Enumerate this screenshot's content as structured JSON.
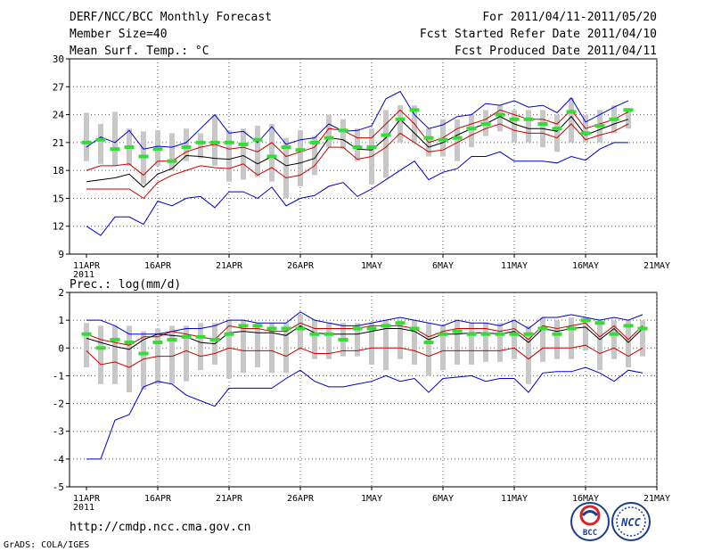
{
  "header": {
    "title": "DERF/NCC/BCC Monthly Forecast",
    "member_size": "Member Size=40",
    "variable_top": "Mean Surf. Temp.: °C",
    "period": "For 2011/04/11-2011/05/20",
    "started_refer": "Fcst Started Refer Date 2011/04/10",
    "produced": "Fcst Produced Date 2011/04/11"
  },
  "footer": {
    "url": "http://cmdp.ncc.cma.gov.cn",
    "credit": "GrADS: COLA/IGES",
    "logo_bcc": "BCC",
    "logo_ncc": "NCC"
  },
  "colors": {
    "max_min_line": "#0000cc",
    "upper_lower_line": "#cc0000",
    "mean_line": "#000000",
    "box": "#c8c8c8",
    "median_dash": "#33dd33",
    "grid": "#555555"
  },
  "chart_data": [
    {
      "type": "line",
      "title": "Mean Surf. Temp.: °C",
      "xlabel": "",
      "ylabel": "°C",
      "ylim": [
        9,
        30
      ],
      "yticks": [
        9,
        12,
        15,
        18,
        21,
        24,
        27,
        30
      ],
      "xticks": [
        {
          "day": 0,
          "label": "11APR",
          "sub": "2011"
        },
        {
          "day": 5,
          "label": "16APR",
          "sub": ""
        },
        {
          "day": 10,
          "label": "21APR",
          "sub": ""
        },
        {
          "day": 15,
          "label": "26APR",
          "sub": ""
        },
        {
          "day": 20,
          "label": "1MAY",
          "sub": ""
        },
        {
          "day": 25,
          "label": "6MAY",
          "sub": ""
        },
        {
          "day": 30,
          "label": "11MAY",
          "sub": ""
        },
        {
          "day": 35,
          "label": "16MAY",
          "sub": ""
        },
        {
          "day": 40,
          "label": "21MAY",
          "sub": ""
        }
      ],
      "grid": true,
      "series": [
        {
          "name": "max",
          "values": [
            20.5,
            21.6,
            21,
            22.3,
            20.3,
            20.6,
            20.5,
            21,
            22.5,
            24,
            22,
            22.2,
            21,
            22.7,
            20.8,
            21.3,
            21.5,
            23,
            22.2,
            22.3,
            22.8,
            25.7,
            26.5,
            24,
            22.5,
            22.9,
            23.8,
            24,
            25.2,
            25,
            25.5,
            24.8,
            25,
            24.2,
            25.8,
            23.2,
            24,
            24.8,
            25.5
          ]
        },
        {
          "name": "upper",
          "values": [
            18,
            18.5,
            18.5,
            18.7,
            17.5,
            19,
            19,
            20,
            20.5,
            20.8,
            20.3,
            20.5,
            20,
            21,
            19.5,
            20,
            20.5,
            22.5,
            22.3,
            21.5,
            21.5,
            23,
            24.5,
            23,
            21,
            21.5,
            22.5,
            23,
            23.5,
            24.5,
            24,
            23.5,
            23.5,
            23,
            24.5,
            22.5,
            23,
            23.5,
            24.3
          ]
        },
        {
          "name": "mean",
          "values": [
            16.8,
            17,
            17.2,
            17.6,
            16.2,
            17.6,
            18.2,
            19.6,
            19.5,
            19.3,
            19.2,
            19.6,
            18.7,
            19.5,
            18.5,
            18.8,
            19.3,
            21.5,
            21.3,
            20.3,
            20.2,
            21.5,
            23.5,
            22,
            20.5,
            21,
            21.8,
            22.5,
            23,
            23.8,
            23,
            22.5,
            22.5,
            22.2,
            23.8,
            21.8,
            22.4,
            23,
            23.5
          ]
        },
        {
          "name": "lower",
          "values": [
            16,
            16,
            16,
            16,
            15,
            16.7,
            17.5,
            18,
            18.5,
            18.3,
            18.2,
            18.7,
            17.5,
            18.3,
            17.2,
            17.5,
            18.5,
            20.5,
            20.5,
            19.2,
            19.5,
            20.5,
            22,
            21,
            20,
            20.2,
            21,
            21.8,
            22.5,
            23,
            22.3,
            22,
            22,
            21.5,
            23,
            21.3,
            21.8,
            22.2,
            23
          ]
        },
        {
          "name": "min",
          "values": [
            12,
            11,
            13,
            13,
            12.2,
            14.7,
            14.2,
            15,
            15.2,
            14,
            15.7,
            15.7,
            15,
            16.2,
            14.2,
            15,
            15.3,
            16.3,
            16.7,
            15.2,
            16,
            17,
            18,
            19,
            17,
            17.8,
            18.2,
            19.5,
            19.5,
            20,
            19,
            19,
            19,
            18.8,
            19.5,
            19.1,
            20.3,
            21,
            21
          ]
        }
      ],
      "median": [
        21,
        21.3,
        20.3,
        20.5,
        19.5,
        20.3,
        19,
        20.5,
        21,
        21,
        21,
        20.8,
        21.3,
        19.5,
        20.5,
        20.2,
        21,
        21.5,
        22.3,
        20.5,
        20.5,
        21.8,
        23.5,
        24.5,
        21.5,
        21.3,
        21.5,
        22.5,
        23,
        24,
        23.5,
        23.5,
        23,
        22.5,
        24.3,
        22,
        22.8,
        23.5,
        24.5
      ],
      "box_low": [
        19,
        18.7,
        18.5,
        18.5,
        16.5,
        18.5,
        18,
        19,
        19.3,
        18.5,
        16.8,
        17,
        17.3,
        16.8,
        15,
        16.3,
        17.5,
        20.5,
        20.3,
        19,
        16.5,
        17.2,
        21,
        21,
        19.5,
        19.5,
        19,
        20.5,
        21.7,
        22.2,
        21,
        21,
        20.5,
        20,
        21,
        21,
        21,
        22,
        22.5
      ],
      "box_high": [
        24.2,
        23,
        24.3,
        22.5,
        22.2,
        22.3,
        22,
        22.5,
        22,
        24,
        22.3,
        22.5,
        22.8,
        23,
        21.5,
        22.3,
        21.7,
        24,
        23.5,
        22.5,
        22.5,
        24.5,
        25,
        25,
        22.5,
        23.5,
        23.5,
        24,
        24.5,
        25,
        24.5,
        24.5,
        24.5,
        24,
        25.8,
        24,
        24.5,
        25,
        24.7
      ]
    },
    {
      "type": "line",
      "title": "Prec.: log(mm/d)",
      "xlabel": "",
      "ylabel": "log(mm/d)",
      "ylim": [
        -5,
        2
      ],
      "yticks": [
        -5,
        -4,
        -3,
        -2,
        -1,
        0,
        1,
        2
      ],
      "xticks": [
        {
          "day": 0,
          "label": "11APR",
          "sub": "2011"
        },
        {
          "day": 5,
          "label": "16APR",
          "sub": ""
        },
        {
          "day": 10,
          "label": "21APR",
          "sub": ""
        },
        {
          "day": 15,
          "label": "26APR",
          "sub": ""
        },
        {
          "day": 20,
          "label": "1MAY",
          "sub": ""
        },
        {
          "day": 25,
          "label": "6MAY",
          "sub": ""
        },
        {
          "day": 30,
          "label": "11MAY",
          "sub": ""
        },
        {
          "day": 35,
          "label": "16MAY",
          "sub": ""
        },
        {
          "day": 40,
          "label": "21MAY",
          "sub": ""
        }
      ],
      "grid": true,
      "series": [
        {
          "name": "max",
          "values": [
            1,
            1,
            0.8,
            0.5,
            0.5,
            0.5,
            0.6,
            0.7,
            0.7,
            0.8,
            1,
            1,
            0.9,
            0.9,
            0.9,
            1.3,
            1,
            0.9,
            0.8,
            0.8,
            0.9,
            1,
            1.1,
            1,
            0.9,
            0.8,
            1,
            0.9,
            0.9,
            0.8,
            1,
            0.7,
            1.1,
            1.1,
            1.2,
            1.1,
            1,
            1.1,
            1,
            1.2
          ]
        },
        {
          "name": "upper",
          "values": [
            0.5,
            0.3,
            0.2,
            0.1,
            0.4,
            0.4,
            0.6,
            0.5,
            0.4,
            0.3,
            0.8,
            0.7,
            0.7,
            0.6,
            0.6,
            0.9,
            0.7,
            0.7,
            0.7,
            0.7,
            0.8,
            0.8,
            0.8,
            0.7,
            0.4,
            0.6,
            0.7,
            0.7,
            0.7,
            0.6,
            0.7,
            0.3,
            0.8,
            0.7,
            0.8,
            0.9,
            0.4,
            0.8,
            0.3,
            0.8
          ]
        },
        {
          "name": "mean",
          "values": [
            0.35,
            0.2,
            0.05,
            -0.05,
            0.3,
            0.5,
            0.45,
            0.4,
            0.2,
            0.15,
            0.55,
            0.6,
            0.55,
            0.55,
            0.45,
            0.8,
            0.55,
            0.5,
            0.5,
            0.5,
            0.6,
            0.7,
            0.7,
            0.6,
            0.3,
            0.5,
            0.5,
            0.55,
            0.55,
            0.5,
            0.6,
            0.2,
            0.7,
            0.6,
            0.7,
            0.75,
            0.3,
            0.7,
            0.2,
            0.7
          ]
        },
        {
          "name": "lower",
          "values": [
            -0.1,
            -0.6,
            -0.5,
            -0.7,
            -0.4,
            -0.3,
            -0.3,
            -0.1,
            -0.3,
            -0.2,
            0,
            -0.1,
            -0.1,
            -0.1,
            -0.3,
            0,
            -0.2,
            -0.2,
            -0.1,
            -0.1,
            0,
            0,
            0,
            -0.1,
            -0.3,
            -0.1,
            -0.1,
            -0.1,
            -0.1,
            -0.1,
            0,
            -0.4,
            0,
            0,
            0,
            0.1,
            -0.2,
            0,
            -0.3,
            0
          ]
        },
        {
          "name": "min",
          "values": [
            -4,
            -4,
            -2.6,
            -2.4,
            -1.4,
            -1.2,
            -1.3,
            -1.7,
            -1.9,
            -2.1,
            -1.45,
            -1.45,
            -1.45,
            -1.45,
            -1.1,
            -0.8,
            -1.2,
            -1.4,
            -1.4,
            -1.3,
            -1.2,
            -1,
            -1.2,
            -1.1,
            -1.6,
            -1.1,
            -1.05,
            -1,
            -1.2,
            -1.1,
            -1.1,
            -1.6,
            -0.9,
            -0.85,
            -0.85,
            -0.7,
            -0.9,
            -1.2,
            -0.8,
            -0.9
          ]
        }
      ],
      "median": [
        0.5,
        0,
        0.3,
        0.2,
        -0.2,
        0.2,
        0.3,
        0.4,
        0.4,
        0.3,
        0.5,
        0.8,
        0.8,
        0.7,
        0.7,
        0.7,
        0.5,
        0.5,
        0.3,
        0.7,
        0.7,
        0.8,
        0.9,
        0.7,
        0.2,
        0.5,
        0.6,
        0.5,
        0.5,
        0.5,
        0.5,
        0.5,
        0.7,
        0.5,
        0.7,
        1,
        0.9,
        0.5,
        0.8,
        0.7
      ],
      "box_low": [
        -0.7,
        -1.3,
        -1.3,
        -1.6,
        -1.5,
        -1.3,
        -1.3,
        -1.2,
        -0.8,
        -0.6,
        -1.1,
        -0.9,
        -0.7,
        -0.9,
        -0.9,
        0,
        -0.4,
        -0.4,
        -0.3,
        -0.3,
        -0.6,
        -0.8,
        -0.4,
        -0.6,
        -1,
        -0.8,
        -0.6,
        -0.6,
        -0.5,
        -0.5,
        -0.4,
        -1.3,
        -0.5,
        -0.4,
        -0.4,
        -0.1,
        -0.8,
        -0.4,
        -0.7,
        -0.3
      ],
      "box_high": [
        0.9,
        0.8,
        0.8,
        0.8,
        0.6,
        0.7,
        0.8,
        0.8,
        0.9,
        0.9,
        1,
        1,
        0.9,
        0.9,
        0.9,
        1.2,
        1,
        0.9,
        0.9,
        0.9,
        0.9,
        1,
        1,
        1,
        0.9,
        0.8,
        1,
        0.9,
        0.9,
        0.9,
        1,
        0.8,
        1.1,
        1,
        1.1,
        1.1,
        1,
        1,
        1,
        1
      ]
    }
  ]
}
